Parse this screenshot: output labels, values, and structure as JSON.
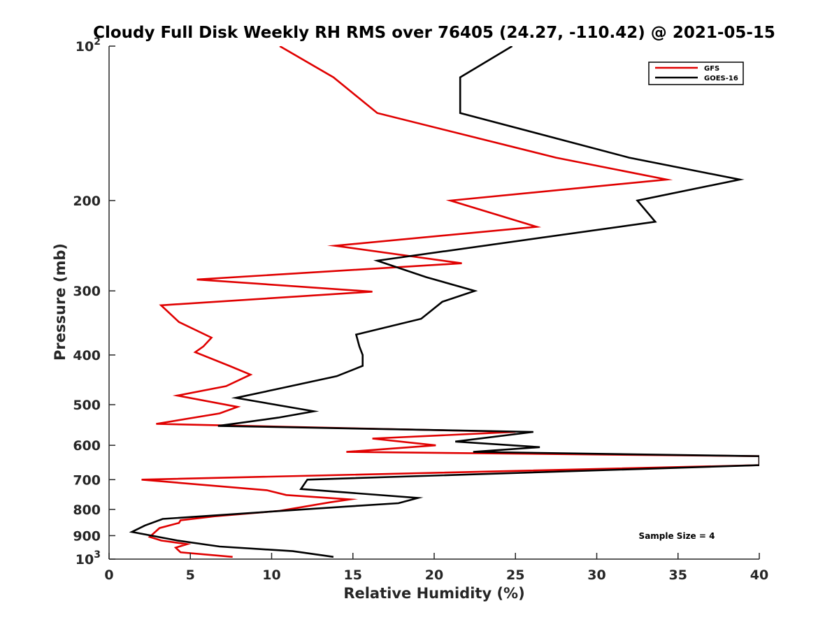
{
  "chart_data": {
    "type": "line",
    "title": "Cloudy Full Disk Weekly RH RMS over 76405 (24.27, -110.42) @ 2021-05-15",
    "xlabel": "Relative Humidity (%)",
    "ylabel": "Pressure (mb)",
    "xlim": [
      0,
      40
    ],
    "ylim": [
      100,
      1000
    ],
    "y_scale": "log",
    "y_reversed": true,
    "grid": false,
    "legend_position": "top-right",
    "x_ticks": [
      "0",
      "5",
      "10",
      "15",
      "20",
      "25",
      "30",
      "35",
      "40"
    ],
    "y_ticks": [
      {
        "value": 100,
        "base": "10",
        "exp": "2"
      },
      {
        "value": 200,
        "label": "200"
      },
      {
        "value": 300,
        "label": "300"
      },
      {
        "value": 400,
        "label": "400"
      },
      {
        "value": 500,
        "label": "500"
      },
      {
        "value": 600,
        "label": "600"
      },
      {
        "value": 700,
        "label": "700"
      },
      {
        "value": 800,
        "label": "800"
      },
      {
        "value": 900,
        "label": "900"
      },
      {
        "value": 1000,
        "base": "10",
        "exp": "3"
      }
    ],
    "annotation": "Sample Size = 4",
    "series": [
      {
        "name": "GFS",
        "color": "#e00000",
        "points": [
          [
            10.5,
            100
          ],
          [
            13.8,
            115
          ],
          [
            16.5,
            135
          ],
          [
            27.5,
            165
          ],
          [
            34.3,
            182
          ],
          [
            21.0,
            200
          ],
          [
            26.3,
            225
          ],
          [
            13.9,
            245
          ],
          [
            21.7,
            265
          ],
          [
            5.4,
            285
          ],
          [
            16.2,
            301
          ],
          [
            3.2,
            320
          ],
          [
            4.3,
            345
          ],
          [
            6.3,
            370
          ],
          [
            5.8,
            385
          ],
          [
            5.3,
            395
          ],
          [
            7.4,
            420
          ],
          [
            8.7,
            437
          ],
          [
            7.2,
            460
          ],
          [
            4.2,
            480
          ],
          [
            7.9,
            505
          ],
          [
            6.8,
            520
          ],
          [
            2.9,
            545
          ],
          [
            25.0,
            565
          ],
          [
            16.2,
            582
          ],
          [
            20.1,
            600
          ],
          [
            14.6,
            618
          ],
          [
            40.0,
            630
          ],
          [
            40.0,
            656
          ],
          [
            2.0,
            700
          ],
          [
            9.7,
            734
          ],
          [
            10.9,
            750
          ],
          [
            14.8,
            765
          ],
          [
            13.6,
            775
          ],
          [
            10.5,
            805
          ],
          [
            6.5,
            825
          ],
          [
            4.4,
            840
          ],
          [
            4.3,
            850
          ],
          [
            3.1,
            870
          ],
          [
            2.5,
            905
          ],
          [
            3.2,
            920
          ],
          [
            4.8,
            935
          ],
          [
            4.1,
            950
          ],
          [
            4.4,
            970
          ],
          [
            7.6,
            990
          ]
        ]
      },
      {
        "name": "GOES-16",
        "color": "#000000",
        "points": [
          [
            24.8,
            100
          ],
          [
            21.6,
            115
          ],
          [
            21.6,
            135
          ],
          [
            32.0,
            165
          ],
          [
            38.8,
            182
          ],
          [
            32.5,
            200
          ],
          [
            33.6,
            220
          ],
          [
            16.5,
            262
          ],
          [
            19.5,
            282
          ],
          [
            22.5,
            300
          ],
          [
            20.5,
            315
          ],
          [
            19.2,
            340
          ],
          [
            15.2,
            365
          ],
          [
            15.4,
            385
          ],
          [
            15.6,
            400
          ],
          [
            15.6,
            420
          ],
          [
            14.0,
            440
          ],
          [
            10.5,
            465
          ],
          [
            7.8,
            485
          ],
          [
            12.6,
            515
          ],
          [
            10.4,
            530
          ],
          [
            6.7,
            550
          ],
          [
            26.1,
            565
          ],
          [
            21.3,
            590
          ],
          [
            26.5,
            605
          ],
          [
            22.4,
            618
          ],
          [
            40.0,
            630
          ],
          [
            40.0,
            656
          ],
          [
            12.2,
            700
          ],
          [
            11.8,
            730
          ],
          [
            19.0,
            760
          ],
          [
            17.8,
            778
          ],
          [
            14.5,
            790
          ],
          [
            3.3,
            835
          ],
          [
            2.2,
            860
          ],
          [
            1.4,
            885
          ],
          [
            4.2,
            920
          ],
          [
            6.8,
            945
          ],
          [
            11.3,
            965
          ],
          [
            13.8,
            990
          ]
        ]
      }
    ]
  }
}
